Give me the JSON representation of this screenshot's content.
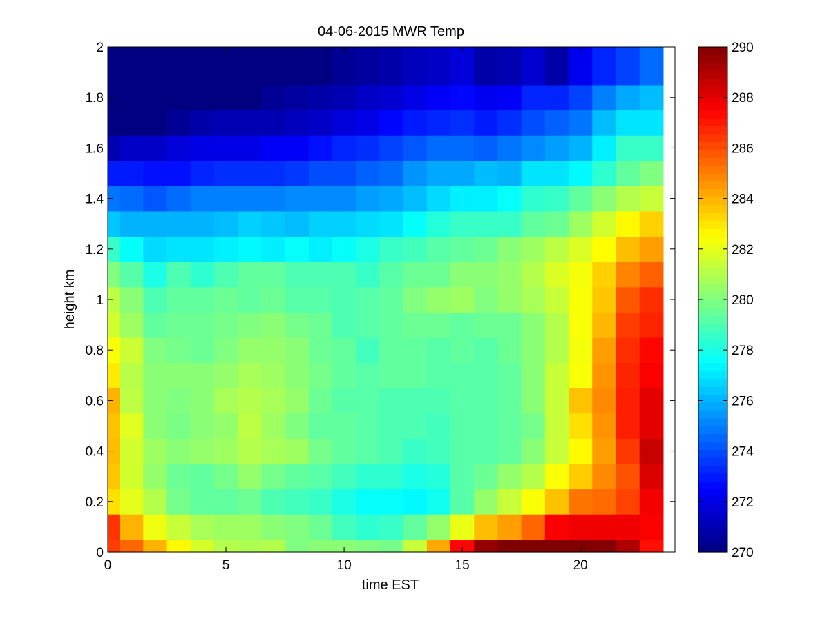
{
  "chart_data": {
    "type": "heatmap",
    "title": "04-06-2015 MWR Temp",
    "xlabel": "time EST",
    "ylabel": "height km",
    "xlim": [
      0,
      24
    ],
    "ylim": [
      0,
      2
    ],
    "xticks": [
      0,
      5,
      10,
      15,
      20
    ],
    "yticks": [
      0,
      0.2,
      0.4,
      0.6,
      0.8,
      1,
      1.2,
      1.4,
      1.6,
      1.8,
      2
    ],
    "colorbar": {
      "colormap": "jet",
      "clim": [
        270,
        290
      ],
      "ticks": [
        270,
        272,
        274,
        276,
        278,
        280,
        282,
        284,
        286,
        288,
        290
      ]
    },
    "x_edges": [
      0,
      0.5,
      1.5,
      2.5,
      3.5,
      4.5,
      5.5,
      6.5,
      7.5,
      8.5,
      9.5,
      10.5,
      11.5,
      12.5,
      13.5,
      14.5,
      15.5,
      16.5,
      17.5,
      18.5,
      19.5,
      20.5,
      21.5,
      22.5,
      23.5
    ],
    "y_edges": [
      0,
      0.05,
      0.15,
      0.25,
      0.35,
      0.45,
      0.55,
      0.65,
      0.75,
      0.85,
      0.95,
      1.05,
      1.15,
      1.25,
      1.35,
      1.45,
      1.55,
      1.65,
      1.75,
      1.85,
      2.0
    ],
    "values": [
      [
        286.3,
        285.5,
        284.0,
        282.6,
        281.7,
        281.0,
        280.9,
        281.0,
        280.0,
        280.2,
        280.2,
        280.0,
        279.8,
        281.4,
        284.2,
        287.4,
        289.6,
        290.0,
        290.0,
        290.0,
        290.0,
        289.9,
        289.1,
        287.2
      ],
      [
        286.5,
        284.0,
        282.2,
        281.4,
        280.8,
        280.6,
        280.6,
        280.2,
        280.0,
        279.6,
        278.8,
        278.4,
        278.6,
        279.4,
        280.4,
        282.1,
        283.8,
        284.4,
        285.5,
        287.6,
        287.8,
        287.8,
        287.8,
        287.6
      ],
      [
        283.1,
        282.0,
        281.0,
        279.8,
        279.4,
        279.4,
        279.6,
        279.0,
        278.8,
        278.6,
        278.0,
        277.6,
        277.6,
        277.4,
        277.8,
        279.2,
        280.4,
        281.4,
        282.4,
        283.7,
        285.2,
        285.4,
        286.2,
        287.7
      ],
      [
        283.6,
        281.6,
        280.4,
        279.6,
        279.4,
        279.8,
        280.4,
        279.8,
        279.4,
        279.2,
        278.8,
        278.4,
        278.4,
        278.0,
        278.2,
        279.2,
        279.6,
        280.4,
        281.0,
        282.4,
        283.5,
        284.8,
        285.9,
        288.2
      ],
      [
        283.8,
        281.6,
        280.6,
        280.2,
        280.4,
        280.6,
        281.0,
        280.8,
        280.6,
        279.8,
        279.4,
        279.2,
        279.0,
        278.6,
        278.8,
        279.2,
        279.2,
        279.4,
        280.2,
        281.4,
        282.6,
        284.4,
        286.4,
        288.6
      ],
      [
        283.7,
        281.9,
        280.2,
        279.9,
        280.2,
        280.4,
        281.2,
        280.6,
        280.0,
        279.4,
        279.4,
        279.2,
        279.0,
        279.0,
        278.8,
        279.2,
        279.2,
        279.4,
        279.8,
        281.4,
        283.1,
        284.6,
        286.9,
        288.0
      ],
      [
        284.0,
        281.2,
        280.2,
        280.0,
        280.2,
        280.8,
        281.0,
        280.8,
        280.4,
        279.6,
        279.2,
        279.2,
        279.0,
        279.0,
        279.0,
        279.2,
        279.2,
        279.4,
        280.2,
        281.4,
        283.7,
        284.8,
        286.9,
        288.0
      ],
      [
        282.9,
        281.1,
        280.2,
        280.2,
        280.2,
        280.4,
        280.8,
        280.6,
        280.2,
        279.8,
        279.4,
        279.2,
        279.4,
        279.4,
        279.2,
        279.2,
        279.2,
        279.4,
        280.2,
        281.4,
        282.4,
        284.6,
        286.8,
        287.6
      ],
      [
        282.4,
        281.5,
        280.0,
        279.8,
        279.6,
        280.0,
        280.4,
        280.4,
        280.2,
        279.6,
        279.4,
        278.8,
        279.4,
        279.4,
        279.2,
        279.4,
        279.2,
        279.6,
        280.2,
        281.0,
        282.3,
        284.4,
        286.6,
        287.4
      ],
      [
        281.6,
        280.6,
        279.4,
        279.6,
        279.6,
        279.8,
        280.0,
        280.2,
        279.8,
        279.6,
        279.0,
        279.2,
        279.4,
        279.6,
        279.6,
        279.4,
        279.6,
        279.6,
        280.2,
        281.0,
        282.4,
        283.9,
        286.3,
        286.8
      ],
      [
        281.2,
        280.2,
        279.0,
        279.4,
        279.4,
        279.6,
        279.4,
        279.6,
        279.2,
        279.2,
        279.0,
        279.2,
        279.4,
        280.0,
        280.4,
        280.6,
        280.0,
        280.4,
        280.8,
        281.4,
        282.4,
        283.6,
        285.8,
        286.6
      ],
      [
        280.0,
        279.2,
        278.0,
        279.0,
        278.4,
        279.0,
        279.4,
        279.4,
        279.0,
        279.0,
        279.0,
        278.6,
        279.2,
        279.6,
        279.6,
        280.2,
        280.2,
        280.4,
        281.0,
        281.8,
        282.3,
        283.4,
        284.9,
        285.6
      ],
      [
        278.6,
        277.6,
        276.8,
        277.0,
        277.0,
        277.2,
        277.4,
        277.2,
        277.6,
        277.2,
        277.6,
        278.0,
        278.6,
        278.8,
        279.2,
        279.4,
        279.6,
        280.2,
        280.6,
        281.2,
        281.8,
        282.5,
        283.8,
        284.4
      ],
      [
        276.4,
        276.0,
        276.0,
        276.0,
        276.0,
        276.2,
        276.6,
        276.4,
        276.2,
        276.6,
        276.6,
        276.8,
        277.0,
        277.6,
        278.2,
        278.6,
        278.6,
        278.6,
        279.4,
        279.6,
        280.6,
        281.6,
        282.6,
        283.4
      ],
      [
        274.8,
        274.6,
        274.2,
        274.6,
        275.0,
        275.0,
        275.0,
        275.0,
        275.2,
        275.2,
        275.2,
        275.6,
        275.8,
        276.2,
        276.8,
        277.2,
        277.2,
        277.6,
        278.4,
        278.6,
        279.4,
        280.2,
        281.0,
        281.4
      ],
      [
        273.0,
        273.0,
        272.8,
        272.8,
        273.2,
        273.4,
        273.4,
        273.4,
        273.6,
        274.0,
        274.0,
        274.4,
        274.6,
        275.4,
        275.8,
        275.8,
        276.2,
        276.0,
        277.0,
        277.0,
        277.4,
        278.4,
        279.4,
        280.0
      ],
      [
        271.0,
        271.4,
        271.4,
        271.8,
        272.0,
        272.0,
        272.0,
        272.4,
        272.4,
        272.8,
        273.2,
        273.4,
        273.8,
        274.2,
        274.6,
        274.6,
        274.4,
        274.8,
        275.2,
        275.6,
        276.0,
        277.2,
        278.6,
        278.6
      ],
      [
        270.0,
        270.0,
        270.0,
        270.4,
        270.8,
        271.0,
        271.0,
        271.0,
        271.2,
        271.4,
        271.8,
        272.0,
        272.6,
        273.0,
        273.2,
        273.4,
        273.0,
        273.4,
        274.0,
        274.4,
        274.8,
        276.2,
        277.0,
        277.0
      ],
      [
        270.0,
        270.0,
        270.0,
        270.0,
        270.0,
        270.0,
        270.0,
        270.4,
        270.6,
        270.8,
        271.0,
        271.4,
        271.6,
        272.0,
        272.4,
        272.6,
        272.2,
        272.4,
        273.2,
        273.2,
        273.8,
        275.0,
        275.8,
        276.2
      ],
      [
        270.0,
        270.0,
        270.0,
        270.0,
        270.0,
        270.0,
        270.0,
        270.0,
        270.0,
        270.0,
        270.4,
        270.6,
        270.8,
        271.2,
        271.4,
        271.8,
        270.8,
        271.0,
        271.6,
        270.8,
        272.2,
        273.2,
        273.8,
        274.6
      ]
    ]
  }
}
